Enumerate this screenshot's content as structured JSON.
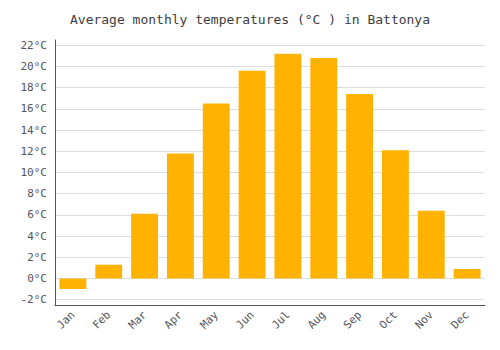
{
  "chart_data": {
    "type": "bar",
    "title": "Average monthly temperatures (°C ) in Battonya",
    "categories": [
      "Jan",
      "Feb",
      "Mar",
      "Apr",
      "May",
      "Jun",
      "Jul",
      "Aug",
      "Sep",
      "Oct",
      "Nov",
      "Dec"
    ],
    "values": [
      -1.0,
      1.3,
      6.1,
      11.8,
      16.5,
      19.6,
      21.2,
      20.8,
      17.4,
      12.1,
      6.4,
      0.9
    ],
    "color": "#FFB300",
    "ylim": [
      -2.5,
      22.5
    ],
    "yticks": [
      {
        "value": -2,
        "label": "-2°C"
      },
      {
        "value": 0,
        "label": "0°C"
      },
      {
        "value": 2,
        "label": "2°C"
      },
      {
        "value": 4,
        "label": "4°C"
      },
      {
        "value": 6,
        "label": "6°C"
      },
      {
        "value": 8,
        "label": "8°C"
      },
      {
        "value": 10,
        "label": "10°C"
      },
      {
        "value": 12,
        "label": "12°C"
      },
      {
        "value": 14,
        "label": "14°C"
      },
      {
        "value": 16,
        "label": "16°C"
      },
      {
        "value": 18,
        "label": "18°C"
      },
      {
        "value": 20,
        "label": "20°C"
      },
      {
        "value": 22,
        "label": "22°C"
      }
    ],
    "grid": true
  }
}
